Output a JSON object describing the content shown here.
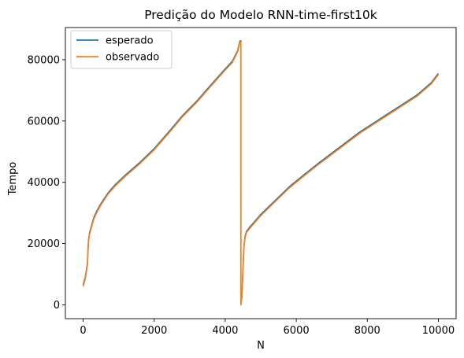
{
  "chart_data": {
    "type": "line",
    "title": "Predição do Modelo RNN-time-first10k",
    "xlabel": "N",
    "ylabel": "Tempo",
    "xlim": [
      -500,
      10500
    ],
    "ylim": [
      -4500,
      90500
    ],
    "xticks": [
      0,
      2000,
      4000,
      6000,
      8000,
      10000
    ],
    "yticks": [
      0,
      20000,
      40000,
      60000,
      80000
    ],
    "grid": false,
    "legend_position": "top-left",
    "series": [
      {
        "name": "esperado",
        "color": "#1f77b4",
        "x": [
          0,
          60,
          120,
          150,
          180,
          240,
          300,
          400,
          500,
          700,
          900,
          1200,
          1600,
          2000,
          2400,
          2800,
          3200,
          3600,
          4000,
          4200,
          4350,
          4410,
          4440,
          4441,
          4470,
          4500,
          4530,
          4560,
          4600,
          4700,
          4800,
          5000,
          5400,
          5800,
          6200,
          6600,
          7000,
          7400,
          7800,
          8200,
          8600,
          9000,
          9400,
          9800,
          10000
        ],
        "y": [
          6500,
          9000,
          13500,
          21000,
          23500,
          26000,
          28500,
          31000,
          33000,
          36500,
          39200,
          42500,
          46500,
          51000,
          56300,
          61800,
          66500,
          71800,
          77000,
          79500,
          83000,
          86000,
          86200,
          300,
          3000,
          12000,
          19500,
          22500,
          24000,
          25500,
          26800,
          29500,
          34000,
          38500,
          42300,
          46000,
          49500,
          53000,
          56500,
          59500,
          62500,
          65500,
          68500,
          72500,
          75500
        ]
      },
      {
        "name": "observado",
        "color": "#ff7f0e",
        "x": [
          0,
          60,
          120,
          150,
          180,
          240,
          300,
          400,
          500,
          700,
          900,
          1200,
          1600,
          2000,
          2400,
          2800,
          3200,
          3600,
          4000,
          4200,
          4350,
          4410,
          4440,
          4441,
          4470,
          4500,
          4530,
          4560,
          4600,
          4700,
          4800,
          5000,
          5400,
          5800,
          6200,
          6600,
          7000,
          7400,
          7800,
          8200,
          8600,
          9000,
          9400,
          9800,
          10000
        ],
        "y": [
          6000,
          8500,
          13000,
          20500,
          23000,
          25500,
          28000,
          30500,
          32600,
          36100,
          38800,
          42100,
          46100,
          50600,
          55900,
          61400,
          66100,
          71400,
          76600,
          79100,
          82600,
          85600,
          85800,
          0,
          2500,
          11500,
          19000,
          22000,
          23600,
          25100,
          26400,
          29100,
          33600,
          38100,
          41900,
          45600,
          49100,
          52600,
          56100,
          59100,
          62100,
          65100,
          68100,
          72100,
          75100
        ]
      }
    ]
  }
}
